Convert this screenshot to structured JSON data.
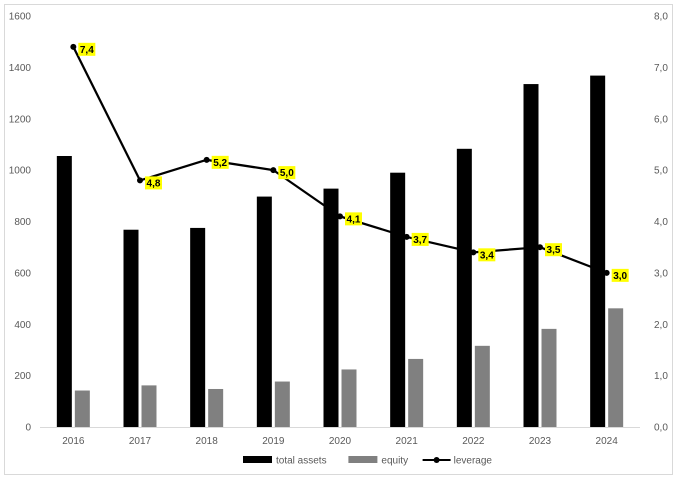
{
  "chart_data": {
    "type": "bar",
    "categories": [
      "2016",
      "2017",
      "2018",
      "2019",
      "2020",
      "2021",
      "2022",
      "2023",
      "2024"
    ],
    "series": [
      {
        "name": "total assets",
        "type": "bar",
        "axis": "left",
        "color": "#000000",
        "values": [
          1055,
          768,
          775,
          897,
          928,
          990,
          1083,
          1335,
          1368
        ]
      },
      {
        "name": "equity",
        "type": "bar",
        "axis": "left",
        "color": "#808080",
        "values": [
          142,
          162,
          148,
          177,
          224,
          265,
          316,
          382,
          462
        ]
      },
      {
        "name": "leverage",
        "type": "line",
        "axis": "right",
        "color": "#000000",
        "values": [
          7.4,
          4.8,
          5.2,
          5.0,
          4.1,
          3.7,
          3.4,
          3.5,
          3.0
        ],
        "labels": [
          "7,4",
          "4,8",
          "5,2",
          "5,0",
          "4,1",
          "3,7",
          "3,4",
          "3,5",
          "3,0"
        ],
        "label_background": "#ffff00"
      }
    ],
    "y_left": {
      "range": [
        0,
        1600
      ],
      "ticks": [
        "0",
        "200",
        "400",
        "600",
        "800",
        "1000",
        "1200",
        "1400",
        "1600"
      ]
    },
    "y_right": {
      "range": [
        0,
        8
      ],
      "ticks": [
        "0,0",
        "1,0",
        "2,0",
        "3,0",
        "4,0",
        "5,0",
        "6,0",
        "7,0",
        "8,0"
      ]
    },
    "grid": false,
    "legend_position": "bottom-center"
  }
}
